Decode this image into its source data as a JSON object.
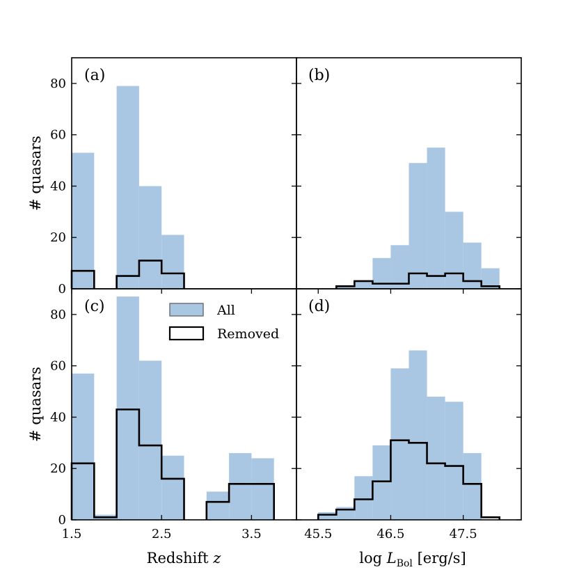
{
  "figure": {
    "legend": {
      "all_label": "All",
      "removed_label": "Removed",
      "placement": "top-center of panel (c)"
    },
    "colors": {
      "all_fill": "#a9c7e3",
      "removed_edge": "#000000",
      "axes": "#000000"
    }
  },
  "chart_data": [
    {
      "panel": "a",
      "panel_label": "(a)",
      "type": "bar",
      "xlim": [
        1.5,
        4.0
      ],
      "ylim": [
        0,
        90
      ],
      "bin_edges": [
        1.5,
        1.75,
        2.0,
        2.25,
        2.5,
        2.75,
        3.0,
        3.25,
        3.5,
        3.75,
        4.0
      ],
      "series": [
        {
          "name": "All",
          "values": [
            53,
            0,
            79,
            40,
            21,
            0,
            0,
            0,
            0,
            0
          ]
        },
        {
          "name": "Removed",
          "values": [
            7,
            0,
            5,
            11,
            6,
            0,
            0,
            0,
            0,
            0
          ]
        }
      ],
      "xticks": [],
      "yticks": [
        0,
        20,
        40,
        60,
        80
      ],
      "ytick_labels": [
        "0",
        "20",
        "40",
        "60",
        "80"
      ],
      "xlabel": "",
      "ylabel": "# quasars"
    },
    {
      "panel": "b",
      "panel_label": "(b)",
      "type": "bar",
      "xlim": [
        45.2,
        48.3
      ],
      "ylim": [
        0,
        90
      ],
      "bin_edges": [
        45.5,
        45.75,
        46.0,
        46.25,
        46.5,
        46.75,
        47.0,
        47.25,
        47.5,
        47.75,
        48.0
      ],
      "series": [
        {
          "name": "All",
          "values": [
            0,
            1,
            3,
            12,
            17,
            49,
            55,
            30,
            18,
            8
          ]
        },
        {
          "name": "Removed",
          "values": [
            0,
            1,
            3,
            2,
            2,
            6,
            5,
            6,
            3,
            1
          ]
        }
      ],
      "xticks": [],
      "yticks": [
        0,
        20,
        40,
        60,
        80
      ],
      "ytick_labels": [],
      "xlabel": "",
      "ylabel": ""
    },
    {
      "panel": "c",
      "panel_label": "(c)",
      "type": "bar",
      "xlim": [
        1.5,
        4.0
      ],
      "ylim": [
        0,
        90
      ],
      "bin_edges": [
        1.5,
        1.75,
        2.0,
        2.25,
        2.5,
        2.75,
        3.0,
        3.25,
        3.5,
        3.75,
        4.0
      ],
      "series": [
        {
          "name": "All",
          "values": [
            57,
            2,
            87,
            62,
            25,
            0,
            11,
            26,
            24,
            0
          ]
        },
        {
          "name": "Removed",
          "values": [
            22,
            1,
            43,
            29,
            16,
            0,
            7,
            14,
            14,
            0
          ]
        }
      ],
      "xticks": [
        1.5,
        2.5,
        3.5
      ],
      "xtick_labels": [
        "1.5",
        "2.5",
        "3.5"
      ],
      "yticks": [
        0,
        20,
        40,
        60,
        80
      ],
      "ytick_labels": [
        "0",
        "20",
        "40",
        "60",
        "80"
      ],
      "xlabel": "Redshift z",
      "xlabel_main": "Redshift ",
      "xlabel_var": "z",
      "ylabel": "# quasars"
    },
    {
      "panel": "d",
      "panel_label": "(d)",
      "type": "bar",
      "xlim": [
        45.2,
        48.3
      ],
      "ylim": [
        0,
        90
      ],
      "bin_edges": [
        45.5,
        45.75,
        46.0,
        46.25,
        46.5,
        46.75,
        47.0,
        47.25,
        47.5,
        47.75,
        48.0
      ],
      "series": [
        {
          "name": "All",
          "values": [
            3,
            5,
            17,
            29,
            59,
            66,
            48,
            46,
            26,
            0
          ]
        },
        {
          "name": "Removed",
          "values": [
            2,
            4,
            8,
            15,
            31,
            30,
            22,
            21,
            14,
            1
          ]
        }
      ],
      "xticks": [
        45.5,
        46.5,
        47.5
      ],
      "xtick_labels": [
        "45.5",
        "46.5",
        "47.5"
      ],
      "yticks": [
        0,
        20,
        40,
        60,
        80
      ],
      "ytick_labels": [],
      "xlabel": "log L_Bol [erg/s]",
      "xlabel_prefix": "log ",
      "xlabel_var": "L",
      "xlabel_sub": "Bol",
      "xlabel_unit": " [erg/s]",
      "ylabel": ""
    }
  ]
}
